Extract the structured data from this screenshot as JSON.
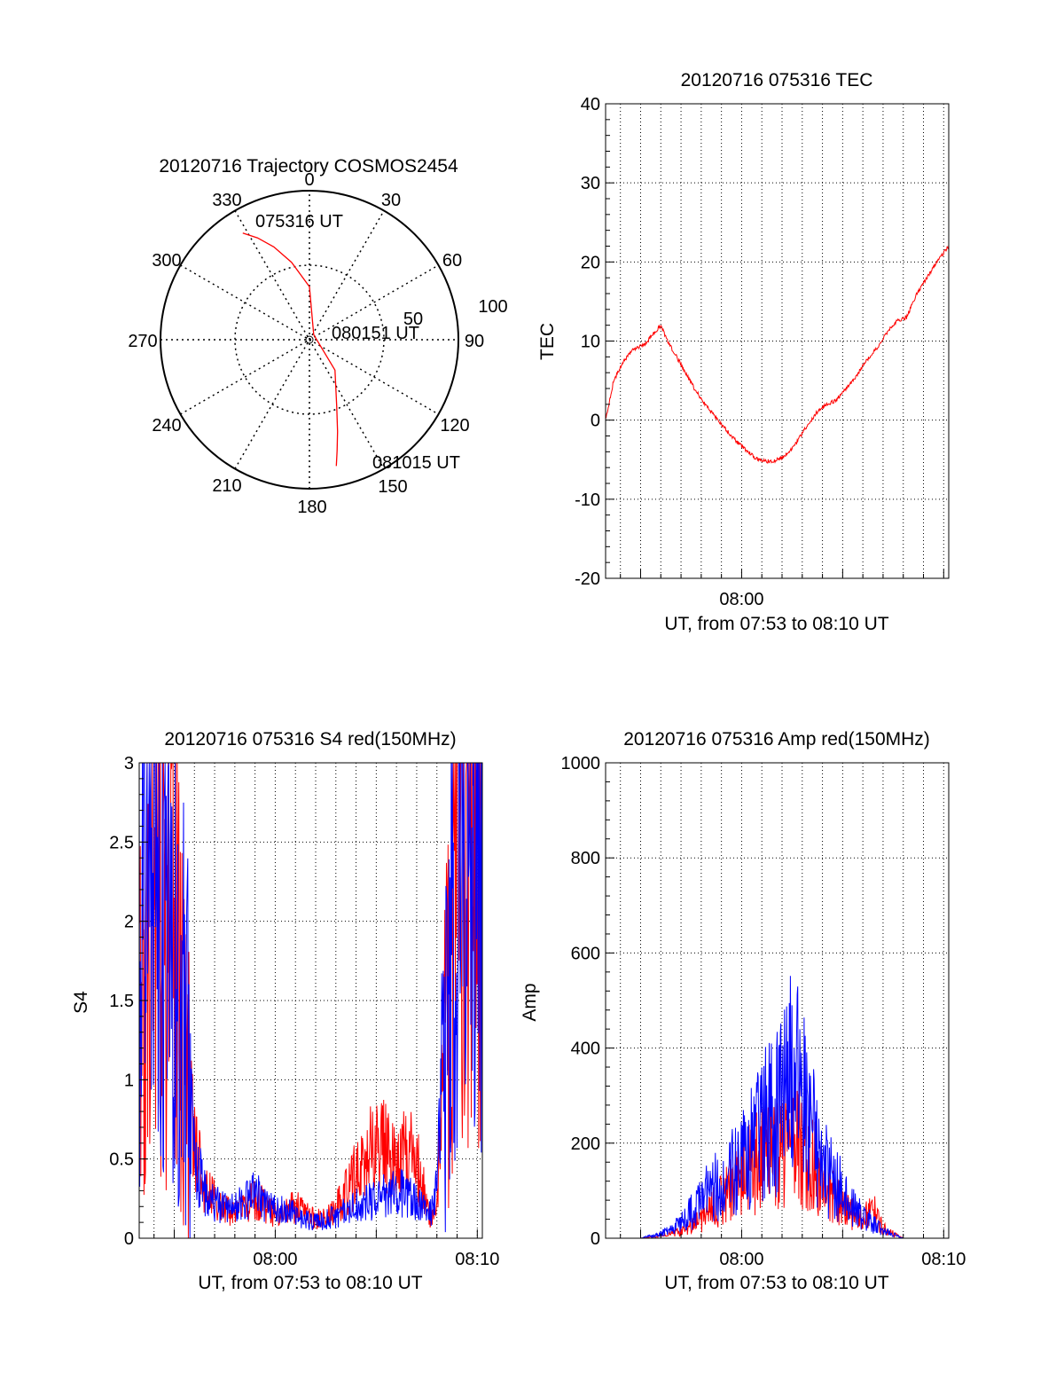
{
  "colors": {
    "red": "#ff0000",
    "blue": "#0000ff",
    "axis": "#000000",
    "grid": "#000000"
  },
  "chart_data": [
    {
      "type": "polar",
      "title": "20120716 Trajectory COSMOS2454",
      "angle_labels": [
        "0",
        "30",
        "60",
        "90",
        "120",
        "150",
        "180",
        "210",
        "240",
        "270",
        "300",
        "330"
      ],
      "radius_labels": [
        "50",
        "100"
      ],
      "annotations": [
        "075316 UT",
        "080151 UT",
        "081015 UT"
      ],
      "series": [
        {
          "color": "red",
          "azimuth": [
            328,
            333,
            339,
            347,
            0,
            40,
            140,
            158,
            163,
            166,
            168
          ],
          "elevation": [
            14,
            21,
            30,
            42,
            58,
            86,
            66,
            46,
            32,
            21,
            12
          ]
        }
      ]
    },
    {
      "type": "line",
      "title": "20120716 075316 TEC",
      "xlabel": "UT, from 07:53 to 08:10 UT",
      "ylabel": "TEC",
      "xlim": [
        "07:53:16",
        "08:10:15"
      ],
      "ylim": [
        -20,
        40
      ],
      "yticks": [
        "-20",
        "-10",
        "0",
        "10",
        "20",
        "30",
        "40"
      ],
      "xticks": [
        "08:00"
      ],
      "grid": true,
      "series": [
        {
          "color": "red",
          "x": [
            "07:53:16",
            "07:53:40",
            "07:54:10",
            "07:54:40",
            "07:55:10",
            "07:55:40",
            "07:56:00",
            "07:56:20",
            "07:57:00",
            "07:57:40",
            "07:58:20",
            "07:59:00",
            "07:59:40",
            "08:00:20",
            "08:00:40",
            "08:01:00",
            "08:01:30",
            "08:02:00",
            "08:02:15",
            "08:02:40",
            "08:03:10",
            "08:03:40",
            "08:04:10",
            "08:04:40",
            "08:05:10",
            "08:05:40",
            "08:06:10",
            "08:06:40",
            "08:07:10",
            "08:07:40",
            "08:08:10",
            "08:08:40",
            "08:09:10",
            "08:09:40",
            "08:10:15"
          ],
          "y": [
            0,
            5,
            7.5,
            9,
            9.5,
            11,
            12,
            10,
            7,
            4,
            1.5,
            -0.5,
            -2.5,
            -4,
            -4.8,
            -5.2,
            -5.2,
            -4.8,
            -4.2,
            -3,
            -1,
            0.8,
            2,
            2.5,
            4,
            5.5,
            7.5,
            9,
            11,
            12.5,
            13,
            16,
            18,
            20,
            22
          ]
        }
      ]
    },
    {
      "type": "line",
      "title": "20120716 075316 S4 red(150MHz)",
      "xlabel": "UT, from 07:53 to 08:10 UT",
      "ylabel": "S4",
      "xlim": [
        "07:53:16",
        "08:10:15"
      ],
      "ylim": [
        0,
        3
      ],
      "yticks": [
        "0",
        "0.5",
        "1",
        "1.5",
        "2",
        "2.5",
        "3"
      ],
      "xticks": [
        "08:00",
        "08:10"
      ],
      "grid": true,
      "series": [
        {
          "color": "red",
          "x": [
            "07:53:16",
            "07:54:00",
            "07:55:00",
            "07:55:40",
            "07:56:00",
            "07:56:30",
            "07:57:00",
            "07:57:30",
            "07:58:00",
            "07:58:30",
            "07:59:00",
            "07:59:30",
            "08:00:00",
            "08:00:30",
            "08:01:00",
            "08:01:30",
            "08:02:00",
            "08:02:30",
            "08:03:00",
            "08:03:30",
            "08:04:00",
            "08:04:30",
            "08:05:00",
            "08:05:30",
            "08:06:00",
            "08:06:30",
            "08:07:00",
            "08:07:20",
            "08:07:40",
            "08:08:00",
            "08:08:30",
            "08:09:00",
            "08:09:30",
            "08:10:15"
          ],
          "y": [
            1.6,
            2.1,
            1.9,
            1.0,
            0.6,
            0.3,
            0.25,
            0.18,
            0.17,
            0.2,
            0.25,
            0.2,
            0.15,
            0.18,
            0.2,
            0.15,
            0.12,
            0.12,
            0.18,
            0.3,
            0.4,
            0.5,
            0.6,
            0.55,
            0.55,
            0.6,
            0.5,
            0.3,
            0.15,
            0.2,
            1.5,
            2.8,
            2.6,
            2.4
          ]
        },
        {
          "color": "blue",
          "x": [
            "07:53:16",
            "07:54:00",
            "07:55:00",
            "07:55:40",
            "07:56:00",
            "07:56:30",
            "07:57:00",
            "07:57:30",
            "07:58:00",
            "07:58:30",
            "07:59:00",
            "07:59:30",
            "08:00:00",
            "08:00:30",
            "08:01:00",
            "08:01:30",
            "08:02:00",
            "08:02:30",
            "08:03:00",
            "08:03:30",
            "08:04:00",
            "08:04:30",
            "08:05:00",
            "08:05:30",
            "08:06:00",
            "08:06:30",
            "08:07:00",
            "08:07:20",
            "08:07:40",
            "08:08:00",
            "08:08:30",
            "08:09:00",
            "08:09:30",
            "08:10:15"
          ],
          "y": [
            1.8,
            2.2,
            2.0,
            1.2,
            0.5,
            0.3,
            0.22,
            0.2,
            0.18,
            0.25,
            0.28,
            0.22,
            0.18,
            0.18,
            0.15,
            0.12,
            0.1,
            0.12,
            0.14,
            0.18,
            0.2,
            0.22,
            0.24,
            0.28,
            0.3,
            0.28,
            0.22,
            0.18,
            0.15,
            0.3,
            1.6,
            2.6,
            2.7,
            2.5
          ]
        }
      ]
    },
    {
      "type": "line",
      "title": "20120716 075316 Amp red(150MHz)",
      "xlabel": "UT, from 07:53 to 08:10 UT",
      "ylabel": "Amp",
      "xlim": [
        "07:53:16",
        "08:10:15"
      ],
      "ylim": [
        0,
        1000
      ],
      "yticks": [
        "0",
        "200",
        "400",
        "600",
        "800",
        "1000"
      ],
      "xticks": [
        "08:00",
        "08:10"
      ],
      "grid": true,
      "series": [
        {
          "color": "red",
          "x": [
            "07:53:16",
            "07:55:00",
            "07:56:00",
            "07:57:00",
            "07:58:00",
            "07:59:00",
            "08:00:00",
            "08:01:00",
            "08:02:00",
            "08:02:30",
            "08:03:00",
            "08:03:30",
            "08:04:00",
            "08:05:00",
            "08:06:00",
            "08:06:30",
            "08:07:00",
            "08:08:00",
            "08:10:15"
          ],
          "y": [
            0,
            0,
            5,
            15,
            40,
            80,
            130,
            170,
            180,
            190,
            200,
            160,
            120,
            60,
            40,
            60,
            20,
            0,
            0
          ]
        },
        {
          "color": "blue",
          "x": [
            "07:53:16",
            "07:55:00",
            "07:56:00",
            "07:57:00",
            "07:58:00",
            "07:59:00",
            "08:00:00",
            "08:01:00",
            "08:02:00",
            "08:02:30",
            "08:03:00",
            "08:03:30",
            "08:04:00",
            "08:05:00",
            "08:06:00",
            "08:06:30",
            "08:07:00",
            "08:08:00",
            "08:10:15"
          ],
          "y": [
            0,
            0,
            10,
            30,
            80,
            120,
            170,
            230,
            300,
            340,
            300,
            220,
            150,
            100,
            50,
            30,
            15,
            0,
            0
          ]
        }
      ]
    }
  ]
}
